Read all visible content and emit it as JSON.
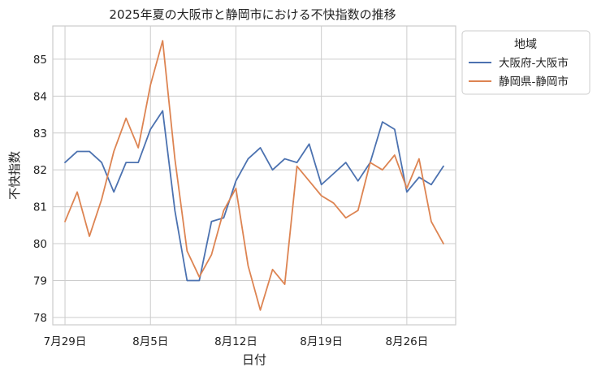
{
  "chart_data": {
    "type": "line",
    "title": "2025年夏の大阪市と静岡市における不快指数の推移",
    "xlabel": "日付",
    "ylabel": "不快指数",
    "x": [
      "2025-07-29",
      "2025-07-30",
      "2025-07-31",
      "2025-08-01",
      "2025-08-02",
      "2025-08-03",
      "2025-08-04",
      "2025-08-05",
      "2025-08-06",
      "2025-08-07",
      "2025-08-08",
      "2025-08-09",
      "2025-08-10",
      "2025-08-11",
      "2025-08-12",
      "2025-08-13",
      "2025-08-14",
      "2025-08-15",
      "2025-08-16",
      "2025-08-17",
      "2025-08-18",
      "2025-08-19",
      "2025-08-20",
      "2025-08-21",
      "2025-08-22",
      "2025-08-23",
      "2025-08-24",
      "2025-08-25",
      "2025-08-26",
      "2025-08-27",
      "2025-08-28",
      "2025-08-29"
    ],
    "xlim": [
      "2025-07-28",
      "2025-08-30"
    ],
    "ylim": [
      77.8,
      85.9
    ],
    "xticks": [
      {
        "date": "2025-07-29",
        "label": "7月29日"
      },
      {
        "date": "2025-08-05",
        "label": "8月5日"
      },
      {
        "date": "2025-08-12",
        "label": "8月12日"
      },
      {
        "date": "2025-08-19",
        "label": "8月19日"
      },
      {
        "date": "2025-08-26",
        "label": "8月26日"
      }
    ],
    "yticks": [
      78,
      79,
      80,
      81,
      82,
      83,
      84,
      85
    ],
    "grid": true,
    "legend": {
      "title": "地域",
      "placement": "outside-right-top"
    },
    "series": [
      {
        "name": "大阪府-大阪市",
        "color": "#4c72b0",
        "values": [
          82.2,
          82.5,
          82.5,
          82.2,
          81.4,
          82.2,
          82.2,
          83.1,
          83.6,
          80.9,
          79.0,
          79.0,
          80.6,
          80.7,
          81.7,
          82.3,
          82.6,
          82.0,
          82.3,
          82.2,
          82.7,
          81.6,
          81.9,
          82.2,
          81.7,
          82.2,
          83.3,
          83.1,
          81.4,
          81.8,
          81.6,
          82.1
        ]
      },
      {
        "name": "静岡県-静岡市",
        "color": "#dd8452",
        "values": [
          80.6,
          81.4,
          80.2,
          81.2,
          82.5,
          83.4,
          82.6,
          84.3,
          85.5,
          82.3,
          79.8,
          79.1,
          79.7,
          80.9,
          81.5,
          79.4,
          78.2,
          79.3,
          78.9,
          82.1,
          81.7,
          81.3,
          81.1,
          80.7,
          80.9,
          82.2,
          82.0,
          82.4,
          81.5,
          82.3,
          80.6,
          80.0
        ]
      }
    ]
  }
}
